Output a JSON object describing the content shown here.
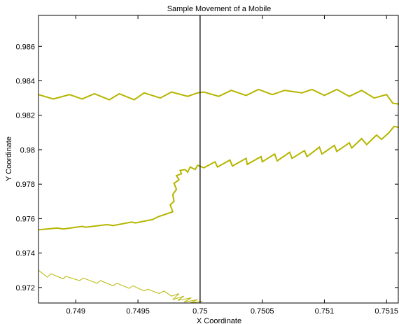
{
  "chart_data": {
    "type": "line",
    "title": "Sample Movement of a Mobile",
    "xlabel": "X Coordinate",
    "ylabel": "Y Coordinate",
    "xlim": [
      0.7487,
      0.7516
    ],
    "ylim": [
      0.9711,
      0.9878
    ],
    "x_ticks": [
      0.749,
      0.7495,
      0.75,
      0.7505,
      0.751,
      0.7515
    ],
    "x_tick_labels": [
      "0.749",
      "0.7495",
      "0.75",
      "0.7505",
      "0.751",
      "0.7515"
    ],
    "y_ticks": [
      0.972,
      0.974,
      0.976,
      0.978,
      0.98,
      0.982,
      0.984,
      0.986
    ],
    "y_tick_labels": [
      "0.972",
      "0.974",
      "0.976",
      "0.978",
      "0.98",
      "0.982",
      "0.984",
      "0.986"
    ],
    "grid": false,
    "vertical_line_x": 0.75,
    "series_color": "#b5b500",
    "series": [
      {
        "stroke_width": 2,
        "x": [
          0.7487,
          0.74882,
          0.74895,
          0.74905,
          0.74915,
          0.74927,
          0.74935,
          0.74947,
          0.74955,
          0.74968,
          0.74977,
          0.7499,
          0.74998,
          0.75003,
          0.75015,
          0.75025,
          0.75037,
          0.75047,
          0.75058,
          0.75068,
          0.75082,
          0.7509,
          0.751,
          0.7511,
          0.7512,
          0.7513,
          0.7514,
          0.7515,
          0.75155,
          0.7516
        ],
        "y": [
          0.9832,
          0.98295,
          0.9832,
          0.98295,
          0.98325,
          0.9829,
          0.98325,
          0.9829,
          0.9833,
          0.983,
          0.98335,
          0.9831,
          0.9833,
          0.98335,
          0.9831,
          0.98345,
          0.98315,
          0.9835,
          0.9832,
          0.98345,
          0.9833,
          0.9835,
          0.98315,
          0.9835,
          0.9831,
          0.98345,
          0.983,
          0.9832,
          0.9827,
          0.98265
        ]
      },
      {
        "stroke_width": 2,
        "x": [
          0.7487,
          0.74885,
          0.7489,
          0.74905,
          0.74908,
          0.74925,
          0.7493,
          0.74945,
          0.74948,
          0.74962,
          0.74966,
          0.74978,
          0.74976,
          0.74979,
          0.74978,
          0.74981,
          0.74979,
          0.74983,
          0.74981,
          0.74985,
          0.74984,
          0.74988,
          0.7499,
          0.74992,
          0.74996,
          0.74998,
          0.75003,
          0.75012,
          0.75014,
          0.75024,
          0.75026,
          0.75037,
          0.75038,
          0.75049,
          0.7505,
          0.7506,
          0.75062,
          0.75072,
          0.75074,
          0.75084,
          0.75086,
          0.75096,
          0.75098,
          0.75108,
          0.7511,
          0.7512,
          0.75122,
          0.7513,
          0.75134,
          0.75142,
          0.75146,
          0.75152,
          0.75156,
          0.7516
        ],
        "y": [
          0.97535,
          0.97545,
          0.9754,
          0.97555,
          0.9755,
          0.97565,
          0.9756,
          0.9758,
          0.97575,
          0.97595,
          0.9761,
          0.9764,
          0.9768,
          0.977,
          0.9774,
          0.9777,
          0.97805,
          0.97825,
          0.9785,
          0.9786,
          0.9788,
          0.97885,
          0.9787,
          0.979,
          0.97885,
          0.9791,
          0.97895,
          0.9793,
          0.979,
          0.9794,
          0.97905,
          0.9795,
          0.97915,
          0.9796,
          0.9793,
          0.97975,
          0.97935,
          0.97985,
          0.9795,
          0.97995,
          0.9796,
          0.98015,
          0.97975,
          0.98025,
          0.9799,
          0.9804,
          0.9801,
          0.98065,
          0.9803,
          0.98085,
          0.9806,
          0.981,
          0.98135,
          0.9813
        ]
      },
      {
        "stroke_width": 1,
        "x": [
          0.7487,
          0.7487,
          0.74877,
          0.7488,
          0.7489,
          0.74892,
          0.74903,
          0.74906,
          0.74917,
          0.7492,
          0.7493,
          0.74933,
          0.74943,
          0.74946,
          0.74955,
          0.74958,
          0.74967,
          0.74971,
          0.74977,
          0.74983,
          0.74978,
          0.74987,
          0.74982,
          0.74993,
          0.74987,
          0.74998,
          0.74992,
          0.75002
        ],
        "y": [
          0.97295,
          0.973,
          0.9726,
          0.9728,
          0.9725,
          0.97265,
          0.9724,
          0.97255,
          0.97225,
          0.9724,
          0.9721,
          0.97225,
          0.97195,
          0.9721,
          0.9718,
          0.9719,
          0.97165,
          0.9718,
          0.9715,
          0.97165,
          0.9713,
          0.9715,
          0.97125,
          0.9714,
          0.97115,
          0.9713,
          0.9711,
          0.9712
        ]
      }
    ]
  }
}
